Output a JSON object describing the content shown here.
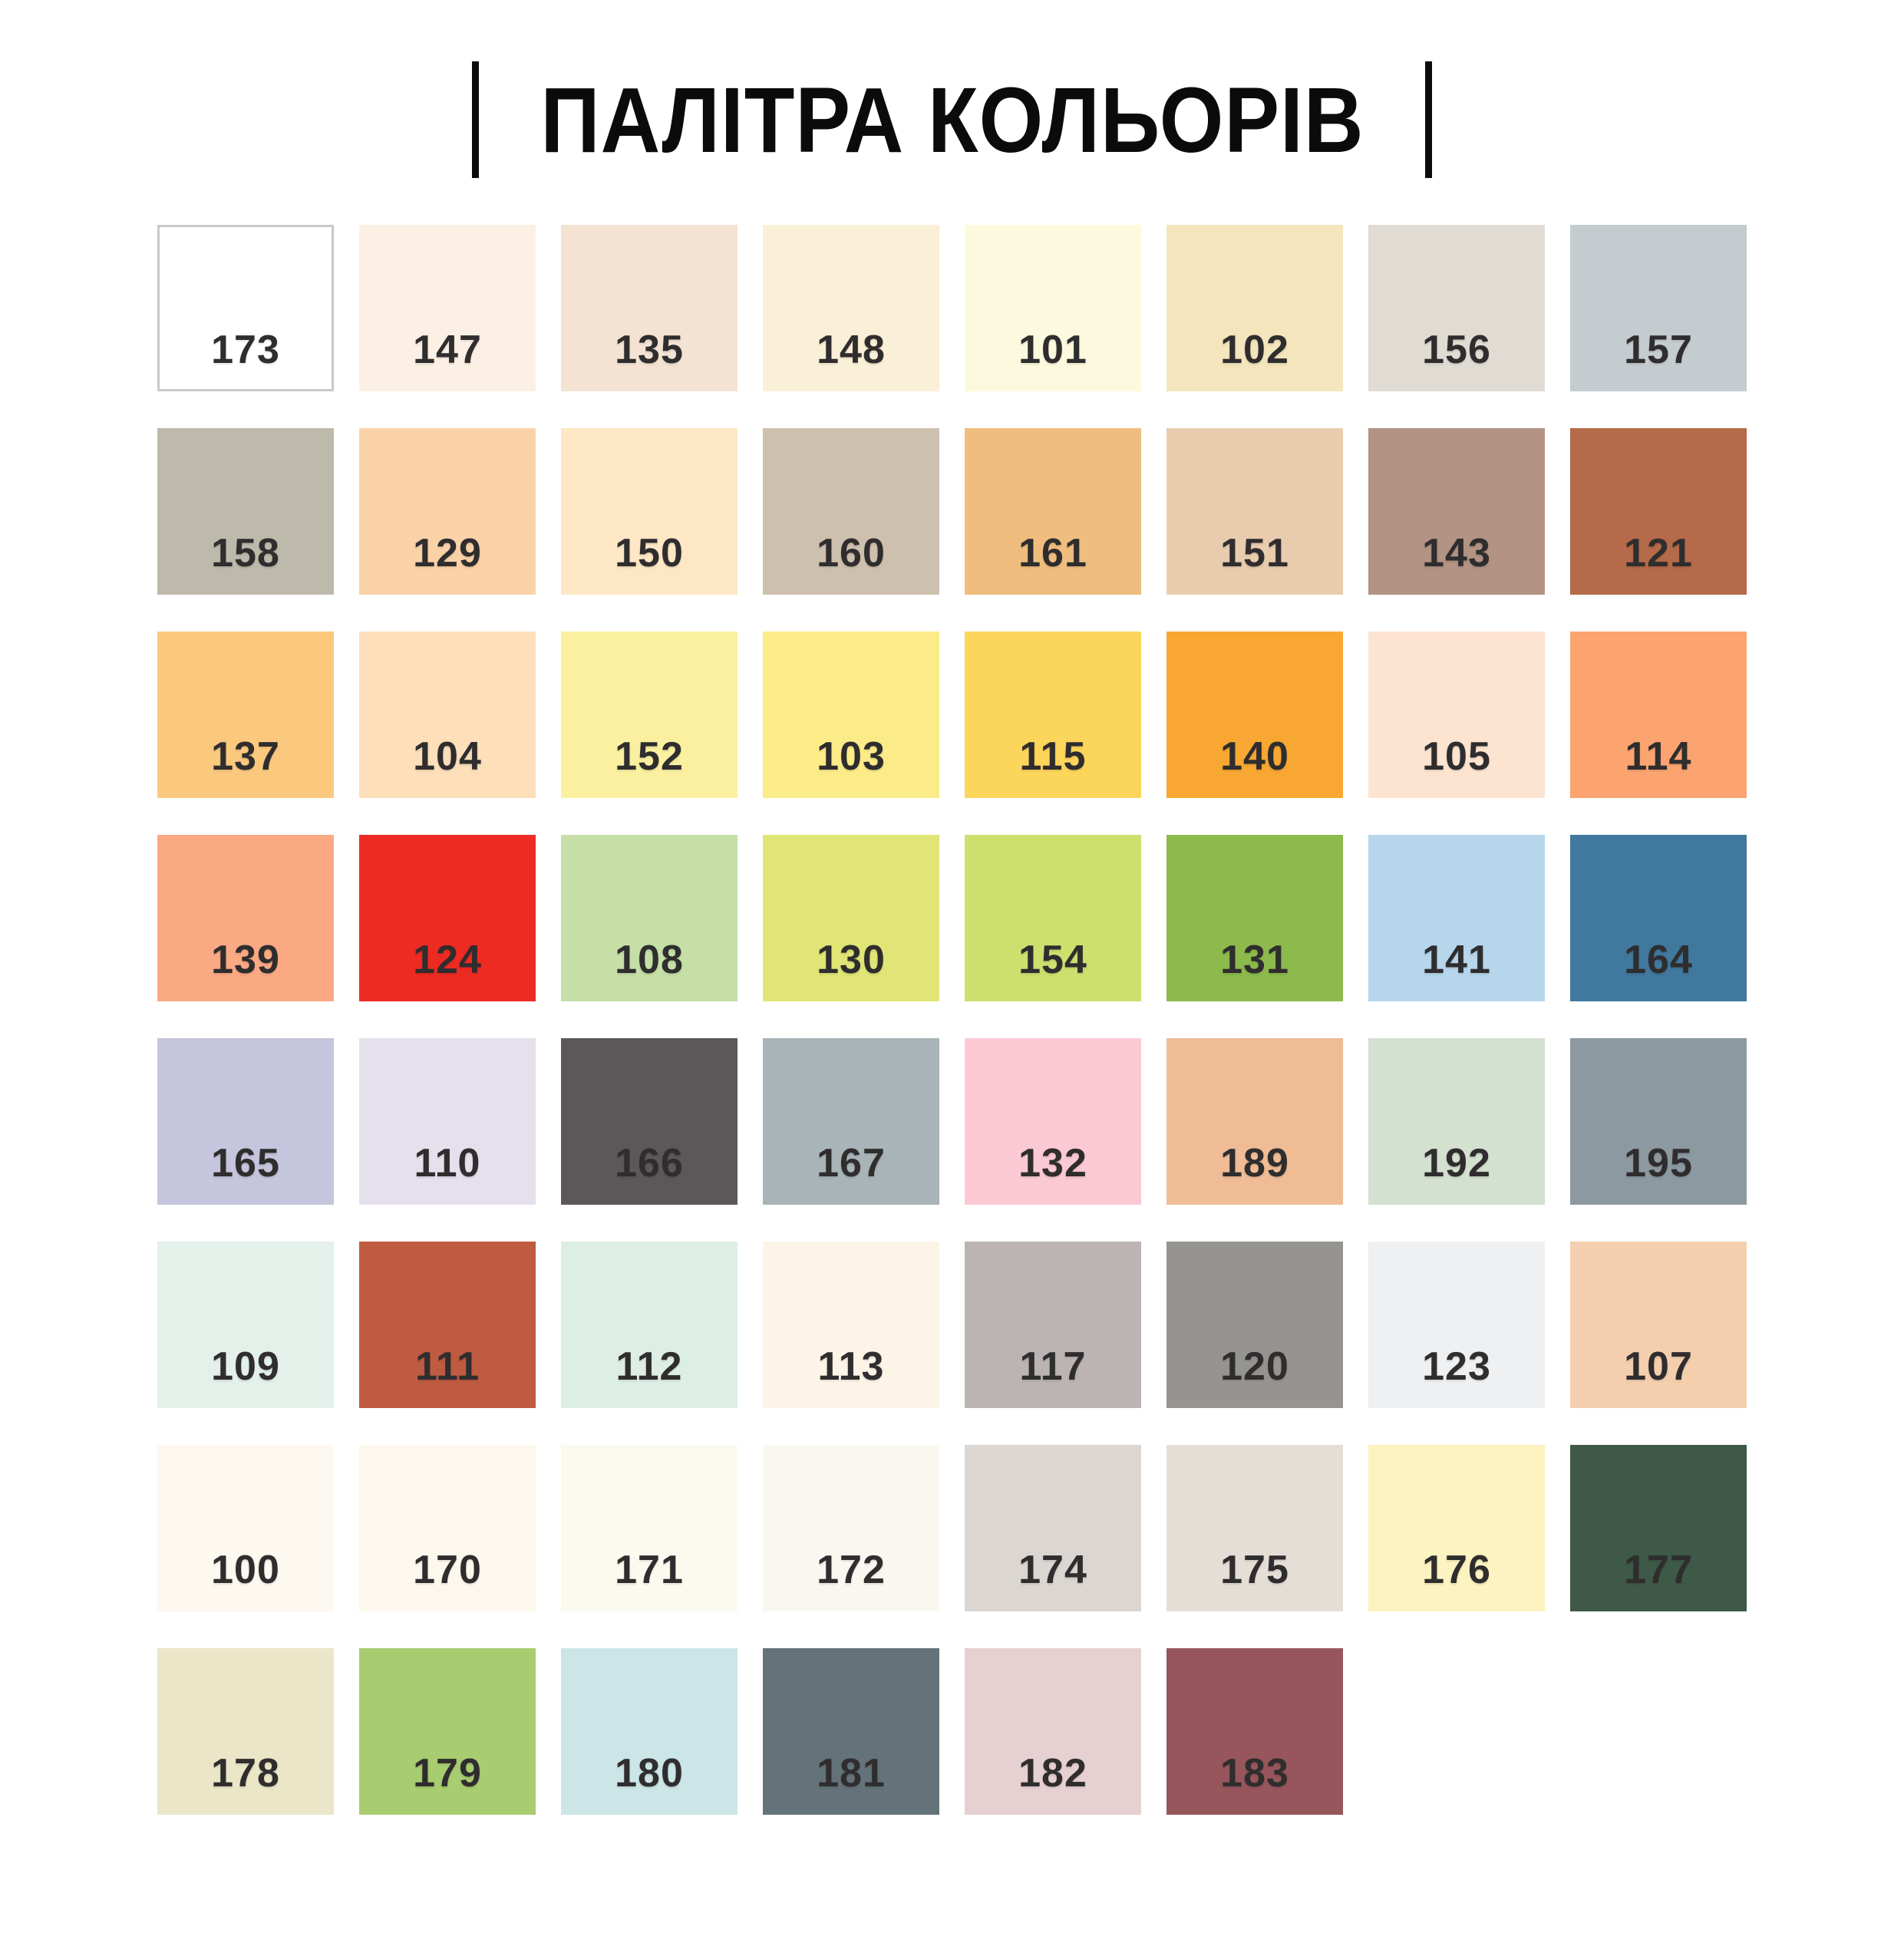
{
  "title": "ПАЛІТРА КОЛЬОРІВ",
  "style": {
    "title_color": "#0b0b0b",
    "swatch_label_color": "#2f2d2e",
    "background": "#ffffff"
  },
  "palette": {
    "columns": 8,
    "swatches": [
      {
        "code": "173",
        "color": "#FFFFFF",
        "border": "#C9C9C9"
      },
      {
        "code": "147",
        "color": "#FCF0E4"
      },
      {
        "code": "135",
        "color": "#F4E3D3"
      },
      {
        "code": "148",
        "color": "#FAF0D7"
      },
      {
        "code": "101",
        "color": "#FCF9DE"
      },
      {
        "code": "102",
        "color": "#F4E5BD"
      },
      {
        "code": "156",
        "color": "#E0DCD3"
      },
      {
        "code": "157",
        "color": "#C5CCD0"
      },
      {
        "code": "158",
        "color": "#BDBAAB"
      },
      {
        "code": "129",
        "color": "#FBD2A8"
      },
      {
        "code": "150",
        "color": "#FDE7C5"
      },
      {
        "code": "160",
        "color": "#CEC0AE"
      },
      {
        "code": "161",
        "color": "#EFBE7E"
      },
      {
        "code": "151",
        "color": "#E9CCAE"
      },
      {
        "code": "143",
        "color": "#B29384"
      },
      {
        "code": "121",
        "color": "#B56A49"
      },
      {
        "code": "137",
        "color": "#FBC97E"
      },
      {
        "code": "104",
        "color": "#FDDFBA"
      },
      {
        "code": "152",
        "color": "#FAF0A0"
      },
      {
        "code": "103",
        "color": "#FCEC88"
      },
      {
        "code": "115",
        "color": "#FCD55B"
      },
      {
        "code": "140",
        "color": "#F8A832"
      },
      {
        "code": "105",
        "color": "#FCE4D1"
      },
      {
        "code": "114",
        "color": "#FBA470"
      },
      {
        "code": "139",
        "color": "#FBA983"
      },
      {
        "code": "124",
        "color": "#EE2B23"
      },
      {
        "code": "108",
        "color": "#C5DFA7"
      },
      {
        "code": "130",
        "color": "#E0E575"
      },
      {
        "code": "154",
        "color": "#CDE06E"
      },
      {
        "code": "131",
        "color": "#8CBA4C"
      },
      {
        "code": "141",
        "color": "#B7D6EC"
      },
      {
        "code": "164",
        "color": "#40789E"
      },
      {
        "code": "165",
        "color": "#C5C5DD"
      },
      {
        "code": "110",
        "color": "#E5E0EC"
      },
      {
        "code": "166",
        "color": "#5C5859"
      },
      {
        "code": "167",
        "color": "#A8B4B8"
      },
      {
        "code": "132",
        "color": "#FBC9D4"
      },
      {
        "code": "189",
        "color": "#EFBC96"
      },
      {
        "code": "192",
        "color": "#D4E0D0"
      },
      {
        "code": "195",
        "color": "#8C99A0"
      },
      {
        "code": "109",
        "color": "#E3F1EA"
      },
      {
        "code": "111",
        "color": "#BF5B41"
      },
      {
        "code": "112",
        "color": "#DDEEE5"
      },
      {
        "code": "113",
        "color": "#FDF4E8"
      },
      {
        "code": "117",
        "color": "#BBB4B3"
      },
      {
        "code": "120",
        "color": "#969490"
      },
      {
        "code": "123",
        "color": "#EEF0F1"
      },
      {
        "code": "107",
        "color": "#F4CFAE"
      },
      {
        "code": "100",
        "color": "#FDF8F0"
      },
      {
        "code": "170",
        "color": "#FDF8ED"
      },
      {
        "code": "171",
        "color": "#FCF9EE"
      },
      {
        "code": "172",
        "color": "#FAF7F1"
      },
      {
        "code": "174",
        "color": "#DBD6D1"
      },
      {
        "code": "175",
        "color": "#E5DED7"
      },
      {
        "code": "176",
        "color": "#FCF3C1"
      },
      {
        "code": "177",
        "color": "#3E5947"
      },
      {
        "code": "178",
        "color": "#EAE6C7"
      },
      {
        "code": "179",
        "color": "#A8CC70"
      },
      {
        "code": "180",
        "color": "#CCE5E7"
      },
      {
        "code": "181",
        "color": "#64727A"
      },
      {
        "code": "182",
        "color": "#E7D0D2"
      },
      {
        "code": "183",
        "color": "#96565C"
      }
    ]
  }
}
